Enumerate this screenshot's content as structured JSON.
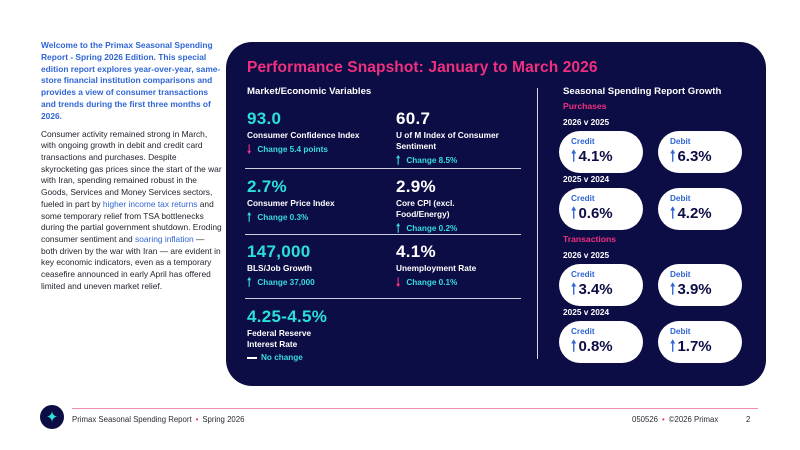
{
  "intro": {
    "heading": "Welcome to the Primax Seasonal Spending Report - Spring 2026 Edition. This special edition report explores year-over-year, same-store financial institution comparisons and provides a view of consumer transactions and trends during the first three months of 2026.",
    "body_1": "Consumer activity remained strong in March, with ongoing growth in debit and credit card transactions and purchases. Despite skyrocketing gas prices since the start of the war with Iran, spending remained robust in the Goods, Services and Money Services sectors, fueled in part by ",
    "link_1": "higher income tax returns",
    "body_2": " and some temporary relief from TSA bottlenecks during the partial government shutdown. Eroding consumer sentiment and ",
    "link_2": "soaring inflation",
    "body_3": " — both driven by the war with Iran — are evident in key economic indicators, even as a temporary ceasefire announced in early April has offered limited and uneven market relief."
  },
  "panel": {
    "title": "Performance Snapshot: January to March 2026",
    "market_heading": "Market/Economic Variables",
    "seasonal_heading": "Seasonal Spending Report Growth"
  },
  "metrics": [
    {
      "value": "93.0",
      "label": "Consumer Confidence Index",
      "change": "Change 5.4 points",
      "direction": "down"
    },
    {
      "value": "60.7",
      "label": "U of M Index of Consumer Sentiment",
      "change": "Change 8.5%",
      "direction": "up"
    },
    {
      "value": "2.7%",
      "label": "Consumer Price Index",
      "change": "Change 0.3%",
      "direction": "up"
    },
    {
      "value": "2.9%",
      "label": "Core CPI (excl. Food/Energy)",
      "change": "Change 0.2%",
      "direction": "up"
    },
    {
      "value": "147,000",
      "label": "BLS/Job Growth",
      "change": "Change 37,000",
      "direction": "up"
    },
    {
      "value": "4.1%",
      "label": "Unemployment Rate",
      "change": "Change 0.1%",
      "direction": "down"
    },
    {
      "value": "4.25-4.5%",
      "label": "Federal Reserve Interest Rate",
      "change": "No change",
      "direction": "flat"
    }
  ],
  "seasonal": {
    "purchases_label": "Purchases",
    "transactions_label": "Transactions",
    "credit_label": "Credit",
    "debit_label": "Debit",
    "purchases": [
      {
        "period": "2026 v 2025",
        "credit": "4.1%",
        "debit": "6.3%"
      },
      {
        "period": "2025 v 2024",
        "credit": "0.6%",
        "debit": "4.2%"
      }
    ],
    "transactions": [
      {
        "period": "2026 v 2025",
        "credit": "3.4%",
        "debit": "3.9%"
      },
      {
        "period": "2025 v 2024",
        "credit": "0.8%",
        "debit": "1.7%"
      }
    ]
  },
  "footer": {
    "report": "Primax Seasonal Spending Report",
    "edition": "Spring 2026",
    "code": "050526",
    "copyright": "©2026 Primax",
    "page": "2"
  },
  "colors": {
    "navy": "#0d0d45",
    "pink": "#f0307e",
    "cyan": "#29e0dc",
    "blue": "#2f66d3"
  },
  "icons": {
    "up": "arrow-up-icon",
    "down": "arrow-down-icon",
    "flat": "dash-icon",
    "logo": "sparkle-logo-icon"
  }
}
